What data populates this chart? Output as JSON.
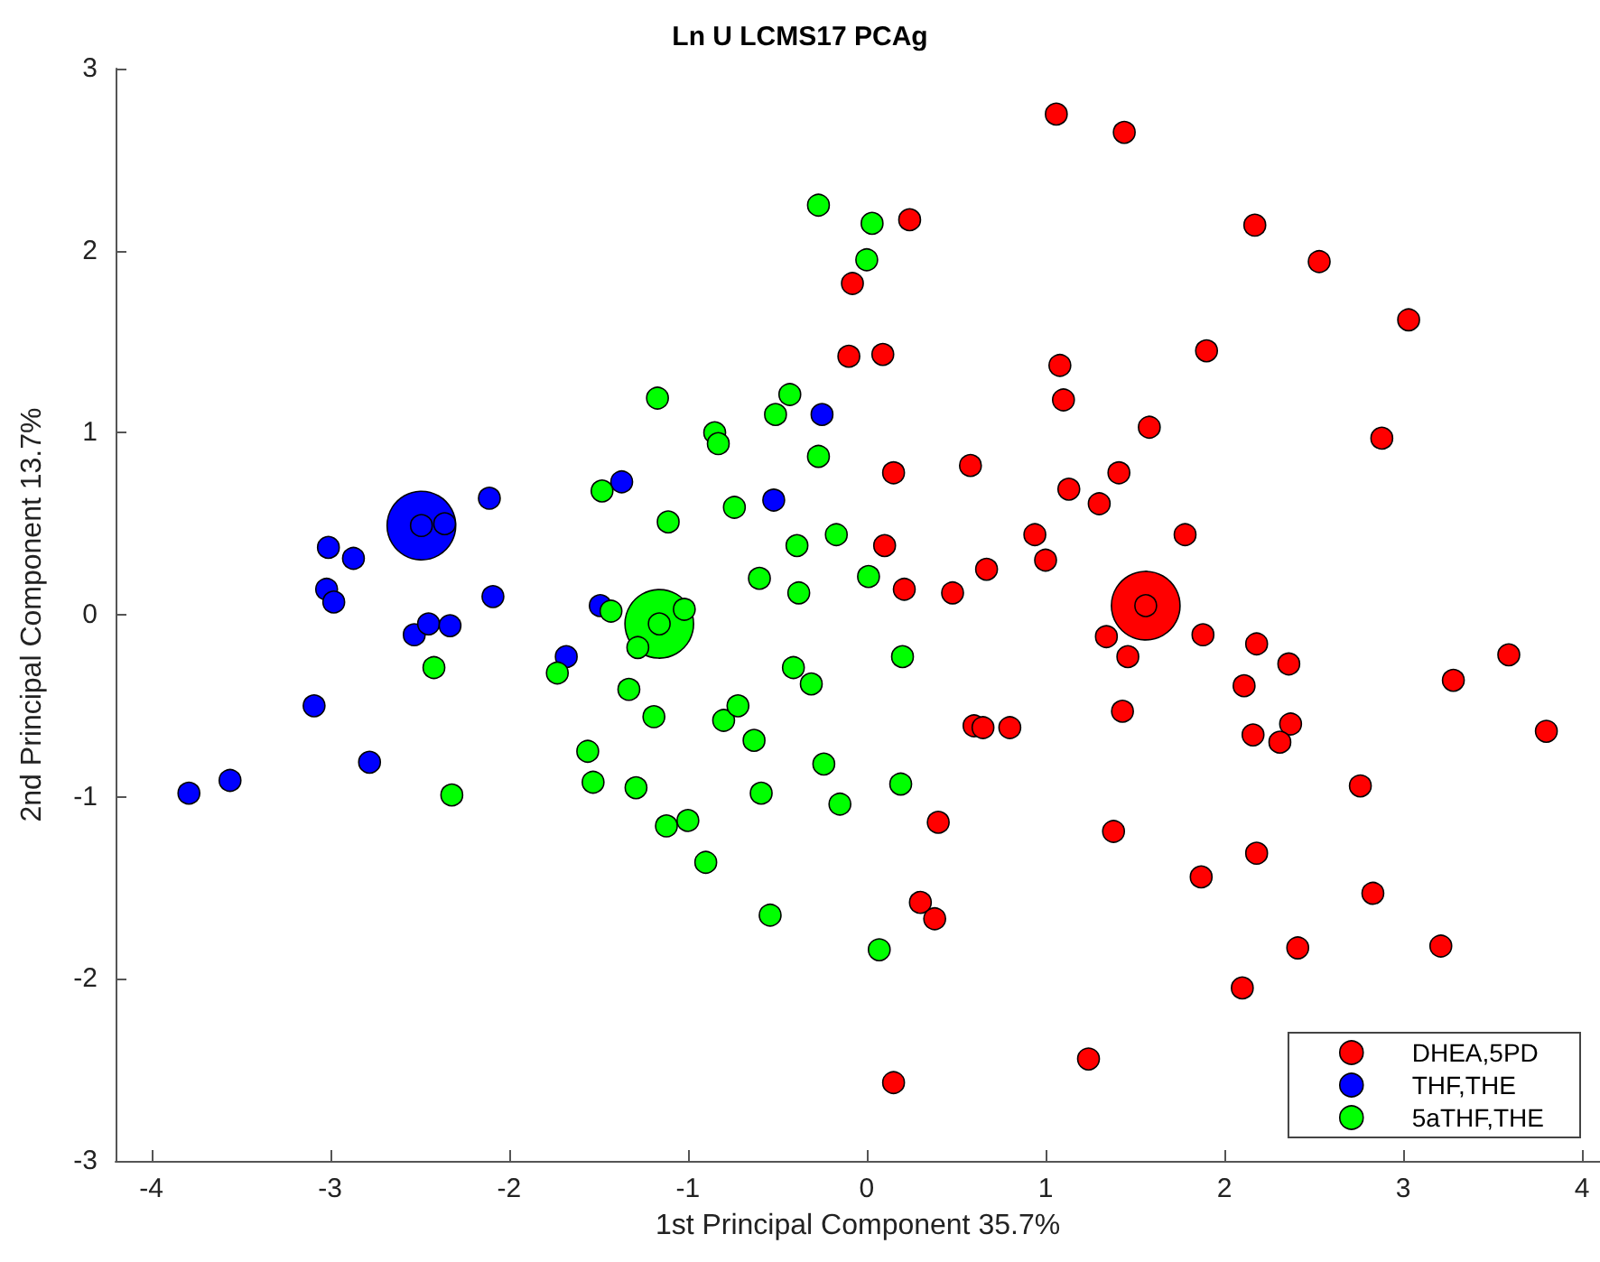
{
  "chart_data": {
    "type": "scatter",
    "title": "Ln U LCMS17 PCAg",
    "xlabel": "1st Principal Component 35.7%",
    "ylabel": "2nd Principal Component 13.7%",
    "xlim": [
      -4.2,
      4.1
    ],
    "ylim": [
      -3,
      3
    ],
    "xticks": [
      -4,
      -3,
      -2,
      -1,
      0,
      1,
      2,
      3,
      4
    ],
    "yticks": [
      -3,
      -2,
      -1,
      0,
      1,
      2,
      3
    ],
    "grid": false,
    "legend": "bottom right",
    "marker": "circle",
    "series": [
      {
        "type": "bubble",
        "colors": [
          "#ff0000",
          "#0000ff",
          "#00ff00"
        ],
        "x": [
          1.56,
          -2.49,
          -1.16
        ],
        "values": [
          0.05,
          0.49,
          -0.05
        ],
        "sizes": [
          1,
          1,
          1
        ]
      },
      {
        "name": "DHEA,5PD",
        "color": "#ff0000",
        "x": [
          1.06,
          1.44,
          -0.08,
          -0.1,
          0.24,
          0.09,
          2.17,
          2.53,
          3.03,
          1.9,
          1.08,
          1.1,
          1.58,
          2.88,
          0.15,
          0.58,
          1.41,
          1.13,
          1.3,
          0.94,
          1.78,
          1.0,
          0.1,
          0.21,
          0.48,
          0.67,
          1.56,
          1.34,
          1.88,
          2.18,
          1.46,
          2.36,
          2.11,
          3.59,
          3.28,
          3.8,
          1.43,
          0.6,
          0.65,
          0.8,
          2.16,
          2.37,
          2.31,
          2.76,
          0.4,
          1.38,
          2.18,
          1.87,
          2.83,
          0.3,
          0.38,
          2.41,
          3.21,
          2.1,
          1.24,
          0.15
        ],
        "values": [
          2.75,
          2.65,
          1.82,
          1.42,
          2.17,
          1.43,
          2.14,
          1.94,
          1.62,
          1.45,
          1.37,
          1.18,
          1.03,
          0.97,
          0.78,
          0.82,
          0.78,
          0.69,
          0.61,
          0.44,
          0.44,
          0.3,
          0.38,
          0.14,
          0.12,
          0.25,
          0.05,
          -0.12,
          -0.11,
          -0.16,
          -0.23,
          -0.27,
          -0.39,
          -0.22,
          -0.36,
          -0.64,
          -0.53,
          -0.61,
          -0.62,
          -0.62,
          -0.66,
          -0.6,
          -0.7,
          -0.94,
          -1.14,
          -1.19,
          -1.31,
          -1.44,
          -1.53,
          -1.58,
          -1.67,
          -1.83,
          -1.82,
          -2.05,
          -2.44,
          -2.57
        ]
      },
      {
        "name": "THF,THE",
        "color": "#0000ff",
        "x": [
          -3.79,
          -3.56,
          -3.09,
          -2.78,
          -3.01,
          -2.87,
          -3.02,
          -2.98,
          -2.11,
          -2.09,
          -1.37,
          -0.25,
          -0.52,
          -1.49,
          -2.53,
          -2.45,
          -2.33,
          -1.68,
          -2.49,
          -2.36
        ],
        "values": [
          -0.98,
          -0.91,
          -0.5,
          -0.81,
          0.37,
          0.31,
          0.14,
          0.07,
          0.64,
          0.1,
          0.73,
          1.1,
          0.63,
          0.05,
          -0.11,
          -0.05,
          -0.06,
          -0.23,
          0.49,
          0.5
        ]
      },
      {
        "name": "5aTHF,THE",
        "color": "#00ff00",
        "x": [
          -0.27,
          0.03,
          0.0,
          -1.17,
          -0.85,
          -0.83,
          -0.43,
          -0.51,
          -0.27,
          -1.48,
          -1.11,
          -0.74,
          -0.17,
          -0.39,
          -0.6,
          -0.38,
          0.01,
          -1.43,
          -1.02,
          -1.16,
          -1.28,
          -2.42,
          -1.73,
          -1.33,
          -1.19,
          -1.56,
          -1.53,
          -1.29,
          -1.12,
          -1.0,
          -0.9,
          -0.54,
          -0.8,
          -0.72,
          -0.63,
          -0.59,
          -0.41,
          -0.31,
          -0.24,
          -0.15,
          -2.32,
          0.2,
          0.19,
          0.07
        ],
        "values": [
          2.25,
          2.15,
          1.95,
          1.19,
          1.0,
          0.94,
          1.21,
          1.1,
          0.87,
          0.68,
          0.51,
          0.59,
          0.44,
          0.38,
          0.2,
          0.12,
          0.21,
          0.02,
          0.03,
          -0.05,
          -0.18,
          -0.29,
          -0.32,
          -0.41,
          -0.56,
          -0.75,
          -0.92,
          -0.95,
          -1.16,
          -1.13,
          -1.36,
          -1.65,
          -0.58,
          -0.5,
          -0.69,
          -0.98,
          -0.29,
          -0.38,
          -0.82,
          -1.04,
          -0.99,
          -0.23,
          -0.93,
          -1.84
        ]
      }
    ]
  }
}
